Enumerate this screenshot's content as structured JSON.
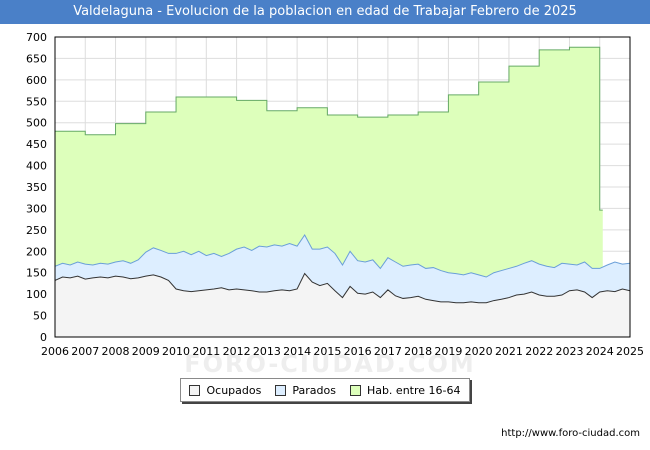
{
  "header": {
    "title": "Valdelaguna - Evolucion de la poblacion en edad de Trabajar Febrero de 2025"
  },
  "legend": {
    "ocupados": "Ocupados",
    "parados": "Parados",
    "hab": "Hab. entre 16-64"
  },
  "footer": {
    "url": "http://www.foro-ciudad.com"
  },
  "watermark": "FORO-CIUDAD.COM",
  "colors": {
    "hab_fill": "#ddffbb",
    "hab_line": "#66aa66",
    "parados_fill": "#ddeeff",
    "parados_line": "#6a9fd8",
    "ocupados_fill": "#f4f4f4",
    "ocupados_line": "#333333",
    "title_bg": "#4a80c8"
  },
  "chart_data": {
    "type": "area",
    "title": "Valdelaguna - Evolucion de la poblacion en edad de Trabajar Febrero de 2025",
    "xlim": [
      2006,
      2025
    ],
    "ylim": [
      0,
      700
    ],
    "x_ticks": [
      "2006",
      "2007",
      "2008",
      "2009",
      "2010",
      "2011",
      "2012",
      "2013",
      "2014",
      "2015",
      "2016",
      "2017",
      "2018",
      "2019",
      "2020",
      "2021",
      "2022",
      "2023",
      "2024",
      "2025"
    ],
    "y_ticks": [
      "0",
      "50",
      "100",
      "150",
      "200",
      "250",
      "300",
      "350",
      "400",
      "450",
      "500",
      "550",
      "600",
      "650",
      "700"
    ],
    "grid": true,
    "series": [
      {
        "name": "Hab. entre 16-64",
        "step": true,
        "x": [
          2006,
          2007,
          2008,
          2009,
          2010,
          2011,
          2012,
          2013,
          2014,
          2015,
          2016,
          2017,
          2018,
          2019,
          2020,
          2021,
          2022,
          2023,
          2024,
          2024.1
        ],
        "values": [
          480,
          472,
          498,
          525,
          560,
          560,
          552,
          528,
          535,
          518,
          513,
          518,
          525,
          565,
          595,
          632,
          670,
          676,
          296,
          296
        ]
      },
      {
        "name": "Parados",
        "x": [
          2006.0,
          2006.25,
          2006.5,
          2006.75,
          2007.0,
          2007.25,
          2007.5,
          2007.75,
          2008.0,
          2008.25,
          2008.5,
          2008.75,
          2009.0,
          2009.25,
          2009.5,
          2009.75,
          2010.0,
          2010.25,
          2010.5,
          2010.75,
          2011.0,
          2011.25,
          2011.5,
          2011.75,
          2012.0,
          2012.25,
          2012.5,
          2012.75,
          2013.0,
          2013.25,
          2013.5,
          2013.75,
          2014.0,
          2014.25,
          2014.5,
          2014.75,
          2015.0,
          2015.25,
          2015.5,
          2015.75,
          2016.0,
          2016.25,
          2016.5,
          2016.75,
          2017.0,
          2017.25,
          2017.5,
          2017.75,
          2018.0,
          2018.25,
          2018.5,
          2018.75,
          2019.0,
          2019.25,
          2019.5,
          2019.75,
          2020.0,
          2020.25,
          2020.5,
          2020.75,
          2021.0,
          2021.25,
          2021.5,
          2021.75,
          2022.0,
          2022.25,
          2022.5,
          2022.75,
          2023.0,
          2023.25,
          2023.5,
          2023.75,
          2024.0,
          2024.25,
          2024.5,
          2024.75,
          2025.0
        ],
        "values": [
          165,
          172,
          168,
          175,
          170,
          168,
          172,
          170,
          175,
          178,
          172,
          180,
          198,
          208,
          202,
          195,
          195,
          200,
          192,
          200,
          190,
          195,
          188,
          195,
          205,
          210,
          202,
          212,
          210,
          215,
          212,
          218,
          212,
          238,
          205,
          205,
          210,
          195,
          168,
          200,
          178,
          175,
          180,
          160,
          185,
          175,
          165,
          168,
          170,
          160,
          162,
          155,
          150,
          148,
          145,
          150,
          145,
          140,
          150,
          155,
          160,
          165,
          172,
          178,
          170,
          165,
          162,
          172,
          170,
          168,
          175,
          160,
          160,
          168,
          175,
          170,
          172
        ]
      },
      {
        "name": "Ocupados",
        "x": [
          2006.0,
          2006.25,
          2006.5,
          2006.75,
          2007.0,
          2007.25,
          2007.5,
          2007.75,
          2008.0,
          2008.25,
          2008.5,
          2008.75,
          2009.0,
          2009.25,
          2009.5,
          2009.75,
          2010.0,
          2010.25,
          2010.5,
          2010.75,
          2011.0,
          2011.25,
          2011.5,
          2011.75,
          2012.0,
          2012.25,
          2012.5,
          2012.75,
          2013.0,
          2013.25,
          2013.5,
          2013.75,
          2014.0,
          2014.25,
          2014.5,
          2014.75,
          2015.0,
          2015.25,
          2015.5,
          2015.75,
          2016.0,
          2016.25,
          2016.5,
          2016.75,
          2017.0,
          2017.25,
          2017.5,
          2017.75,
          2018.0,
          2018.25,
          2018.5,
          2018.75,
          2019.0,
          2019.25,
          2019.5,
          2019.75,
          2020.0,
          2020.25,
          2020.5,
          2020.75,
          2021.0,
          2021.25,
          2021.5,
          2021.75,
          2022.0,
          2022.25,
          2022.5,
          2022.75,
          2023.0,
          2023.25,
          2023.5,
          2023.75,
          2024.0,
          2024.25,
          2024.5,
          2024.75,
          2025.0
        ],
        "values": [
          132,
          140,
          138,
          142,
          135,
          138,
          140,
          138,
          142,
          140,
          136,
          138,
          142,
          145,
          140,
          132,
          112,
          108,
          106,
          108,
          110,
          112,
          115,
          110,
          112,
          110,
          108,
          105,
          105,
          108,
          110,
          108,
          112,
          148,
          128,
          120,
          125,
          108,
          92,
          118,
          102,
          100,
          105,
          92,
          110,
          96,
          90,
          92,
          95,
          88,
          85,
          82,
          82,
          80,
          80,
          82,
          80,
          80,
          85,
          88,
          92,
          98,
          100,
          105,
          98,
          95,
          95,
          98,
          108,
          110,
          105,
          92,
          105,
          108,
          106,
          112,
          108
        ]
      }
    ]
  }
}
